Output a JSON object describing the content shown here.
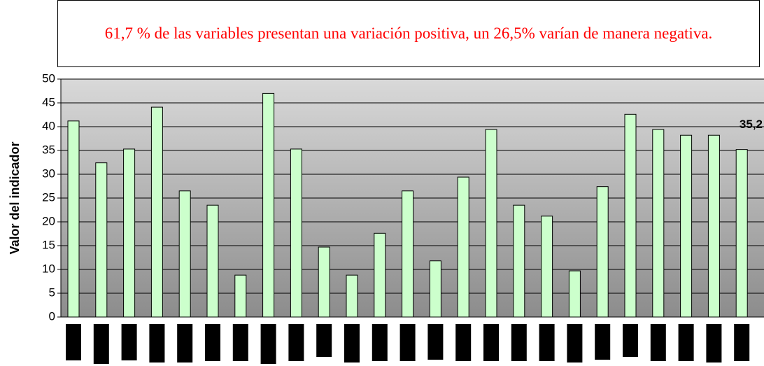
{
  "chart_data": {
    "type": "bar",
    "title": "61,7 % de las variables presentan una variación positiva, un 26,5% varían de manera negativa.",
    "y_label": "Valor del indicador",
    "categories": [
      null,
      null,
      null,
      null,
      null,
      null,
      null,
      null,
      null,
      null,
      null,
      null,
      null,
      null,
      null,
      null,
      null,
      null,
      null,
      null,
      null,
      null,
      null,
      null,
      null
    ],
    "values": [
      41.2,
      32.4,
      35.3,
      44.1,
      26.5,
      23.5,
      8.8,
      47,
      35.3,
      14.7,
      8.8,
      17.6,
      26.5,
      11.8,
      29.4,
      39.4,
      23.5,
      21.2,
      9.7,
      27.4,
      42.6,
      39.4,
      38.2,
      38.2,
      35.2
    ],
    "value_labels": [
      null,
      null,
      null,
      null,
      null,
      null,
      null,
      null,
      null,
      null,
      null,
      null,
      null,
      null,
      null,
      null,
      null,
      null,
      null,
      null,
      null,
      null,
      null,
      null,
      "35,2"
    ],
    "color": "#ccffcc",
    "ylim": [
      0,
      50
    ],
    "yticks": [
      0,
      5,
      10,
      15,
      20,
      25,
      30,
      35,
      40,
      45,
      50
    ],
    "grid": true
  }
}
